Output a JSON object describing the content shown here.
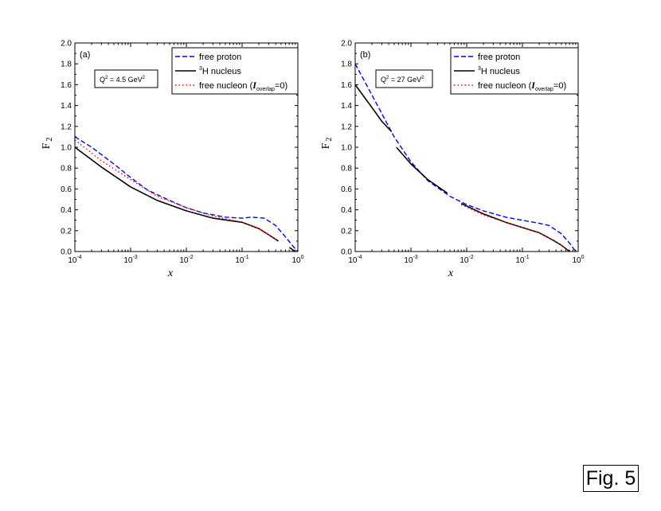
{
  "figure_label": "Fig. 5",
  "chart_data": [
    {
      "type": "line",
      "panel_label": "(a)",
      "annotation": {
        "prefix": "Q",
        "sup": "2",
        "mid": " = 4.5 GeV",
        "sup2": "2"
      },
      "xlabel": "x",
      "ylabel": {
        "main": "F",
        "sub": "2"
      },
      "x_scale": "log",
      "xlim": [
        0.0001,
        1
      ],
      "ylim": [
        0,
        2.0
      ],
      "x_ticks": [
        {
          "value": 0.0001,
          "base": "10",
          "exp": "-4"
        },
        {
          "value": 0.001,
          "base": "10",
          "exp": "-3"
        },
        {
          "value": 0.01,
          "base": "10",
          "exp": "-2"
        },
        {
          "value": 0.1,
          "base": "10",
          "exp": "-1"
        },
        {
          "value": 1,
          "base": "10",
          "exp": "0"
        }
      ],
      "y_ticks": [
        "0.0",
        "0.2",
        "0.4",
        "0.6",
        "0.8",
        "1.0",
        "1.2",
        "1.4",
        "1.6",
        "1.8",
        "2.0"
      ],
      "legend": [
        {
          "key": "proton",
          "text": "free proton"
        },
        {
          "key": "nucleus",
          "sup": "3",
          "text": "H nucleus"
        },
        {
          "key": "nucleon",
          "text": "free nucleon (",
          "italic": "I",
          "sub": "overlap",
          "tail": "=0)"
        }
      ],
      "series": [
        {
          "key": "proton",
          "name": "free proton",
          "color": "#0000ff",
          "dash": "dashed",
          "segments": [
            [
              [
                0.0001,
                1.1
              ],
              [
                0.0002,
                1.0
              ],
              [
                0.0005,
                0.84
              ],
              [
                0.001,
                0.71
              ],
              [
                0.002,
                0.59
              ],
              [
                0.005,
                0.49
              ],
              [
                0.01,
                0.42
              ],
              [
                0.02,
                0.37
              ],
              [
                0.05,
                0.33
              ],
              [
                0.1,
                0.32
              ],
              [
                0.15,
                0.33
              ],
              [
                0.25,
                0.32
              ],
              [
                0.4,
                0.25
              ],
              [
                0.6,
                0.14
              ],
              [
                0.85,
                0.04
              ],
              [
                1.0,
                0.0
              ]
            ]
          ]
        },
        {
          "key": "nucleus",
          "name": "3H nucleus",
          "color": "#000000",
          "dash": "solid",
          "segments": [
            [
              [
                0.0001,
                1.0
              ],
              [
                0.0003,
                0.81
              ],
              [
                0.001,
                0.62
              ],
              [
                0.003,
                0.49
              ],
              [
                0.01,
                0.39
              ],
              [
                0.03,
                0.32
              ],
              [
                0.1,
                0.28
              ],
              [
                0.2,
                0.22
              ],
              [
                0.3,
                0.16
              ],
              [
                0.45,
                0.1
              ]
            ],
            [
              [
                0.7,
                0.04
              ],
              [
                0.9,
                0.0
              ]
            ]
          ]
        },
        {
          "key": "nucleon",
          "name": "free nucleon (Ioverlap=0)",
          "color": "#ff0000",
          "dash": "dotted",
          "segments": [
            [
              [
                0.0001,
                1.07
              ],
              [
                0.0003,
                0.87
              ],
              [
                0.001,
                0.69
              ],
              [
                0.003,
                0.53
              ],
              [
                0.01,
                0.42
              ],
              [
                0.03,
                0.34
              ],
              [
                0.1,
                0.28
              ],
              [
                0.2,
                0.22
              ],
              [
                0.3,
                0.16
              ],
              [
                0.45,
                0.1
              ]
            ],
            [
              [
                0.7,
                0.04
              ],
              [
                0.9,
                0.0
              ]
            ]
          ]
        }
      ]
    },
    {
      "type": "line",
      "panel_label": "(b)",
      "annotation": {
        "prefix": "Q",
        "sup": "2",
        "mid": " = 27 GeV",
        "sup2": "2"
      },
      "xlabel": "x",
      "ylabel": {
        "main": "F",
        "sub": "2"
      },
      "x_scale": "log",
      "xlim": [
        0.0001,
        1
      ],
      "ylim": [
        0,
        2.0
      ],
      "x_ticks": [
        {
          "value": 0.0001,
          "base": "10",
          "exp": "-4"
        },
        {
          "value": 0.001,
          "base": "10",
          "exp": "-3"
        },
        {
          "value": 0.01,
          "base": "10",
          "exp": "-2"
        },
        {
          "value": 0.1,
          "base": "10",
          "exp": "-1"
        },
        {
          "value": 1,
          "base": "10",
          "exp": "0"
        }
      ],
      "y_ticks": [
        "0.0",
        "0.2",
        "0.4",
        "0.6",
        "0.8",
        "1.0",
        "1.2",
        "1.4",
        "1.6",
        "1.8",
        "2.0"
      ],
      "legend": [
        {
          "key": "proton",
          "text": "free proton"
        },
        {
          "key": "nucleus",
          "sup": "3",
          "text": "H nucleus"
        },
        {
          "key": "nucleon",
          "text": "free nucleon (",
          "italic": "I",
          "sub": "overlap",
          "tail": "=0)"
        }
      ],
      "series": [
        {
          "key": "proton",
          "name": "free proton",
          "color": "#0000ff",
          "dash": "dashed",
          "segments": [
            [
              [
                0.0001,
                1.8
              ],
              [
                0.0002,
                1.5
              ],
              [
                0.0005,
                1.1
              ],
              [
                0.001,
                0.86
              ],
              [
                0.002,
                0.68
              ],
              [
                0.005,
                0.53
              ],
              [
                0.01,
                0.45
              ],
              [
                0.02,
                0.39
              ],
              [
                0.05,
                0.33
              ],
              [
                0.1,
                0.3
              ],
              [
                0.2,
                0.27
              ],
              [
                0.3,
                0.25
              ],
              [
                0.5,
                0.17
              ],
              [
                0.7,
                0.08
              ],
              [
                0.9,
                0.0
              ]
            ]
          ]
        },
        {
          "key": "nucleus",
          "name": "3H nucleus",
          "color": "#000000",
          "dash": "solid",
          "segments": [
            [
              [
                0.0001,
                1.6
              ],
              [
                0.0002,
                1.38
              ],
              [
                0.0003,
                1.25
              ],
              [
                0.00045,
                1.15
              ]
            ],
            [
              [
                0.00055,
                1.0
              ],
              [
                0.001,
                0.84
              ],
              [
                0.002,
                0.69
              ],
              [
                0.0045,
                0.56
              ]
            ],
            [
              [
                0.008,
                0.46
              ],
              [
                0.02,
                0.36
              ],
              [
                0.05,
                0.28
              ],
              [
                0.1,
                0.23
              ],
              [
                0.2,
                0.18
              ],
              [
                0.35,
                0.11
              ],
              [
                0.5,
                0.06
              ],
              [
                0.7,
                0.0
              ]
            ]
          ]
        },
        {
          "key": "nucleon",
          "name": "free nucleon (Ioverlap=0)",
          "color": "#ff0000",
          "dash": "dotted",
          "segments": [
            [
              [
                0.008,
                0.45
              ],
              [
                0.02,
                0.35
              ],
              [
                0.05,
                0.28
              ],
              [
                0.1,
                0.23
              ],
              [
                0.2,
                0.18
              ],
              [
                0.35,
                0.11
              ],
              [
                0.5,
                0.06
              ],
              [
                0.7,
                0.0
              ]
            ]
          ]
        }
      ]
    }
  ]
}
